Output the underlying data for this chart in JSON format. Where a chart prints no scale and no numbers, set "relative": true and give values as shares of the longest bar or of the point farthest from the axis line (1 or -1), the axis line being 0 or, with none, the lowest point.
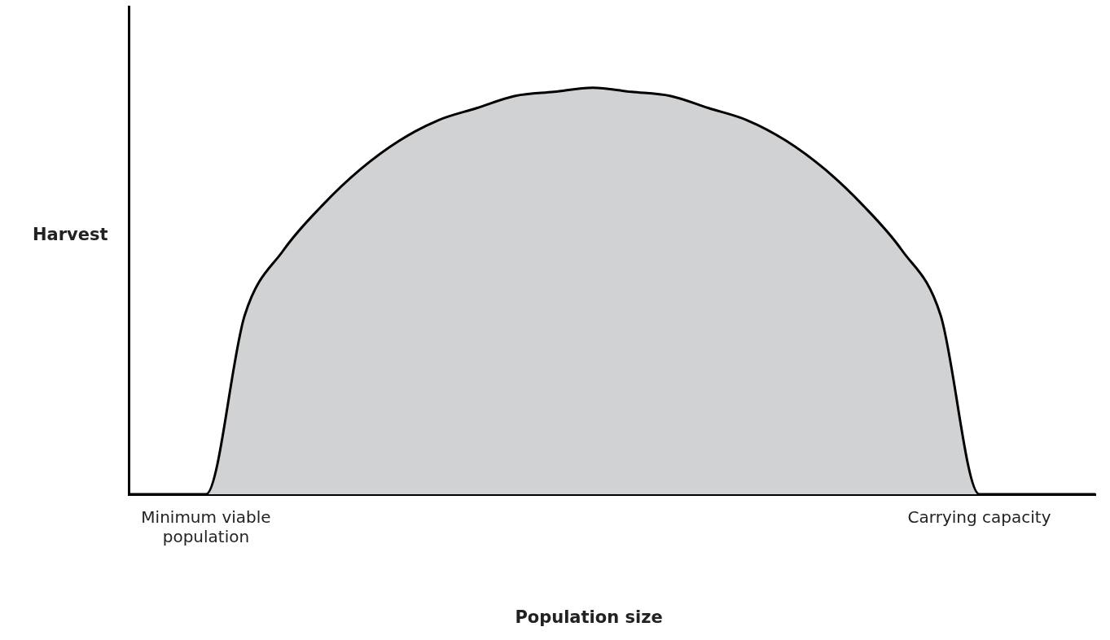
{
  "chart_data": {
    "type": "area",
    "relative": true,
    "xlabel": "Population size",
    "ylabel": "Harvest",
    "categories": [
      null,
      null,
      "Minimum viable population",
      null,
      null,
      null,
      null,
      null,
      null,
      null,
      null,
      null,
      null,
      null,
      null,
      null,
      null,
      null,
      null,
      null,
      null,
      null,
      "Carrying capacity",
      null,
      null,
      null
    ],
    "series": [
      {
        "color": "#d1d2d4",
        "values": [
          0,
          0,
          0,
          0.44,
          0.6,
          0.71,
          0.8,
          0.87,
          0.92,
          0.95,
          0.98,
          0.99,
          1,
          0.99,
          0.98,
          0.95,
          0.92,
          0.87,
          0.8,
          0.71,
          0.6,
          0.44,
          0,
          0,
          0,
          0
        ]
      }
    ],
    "grid": false,
    "legend": false,
    "marker": "none"
  }
}
